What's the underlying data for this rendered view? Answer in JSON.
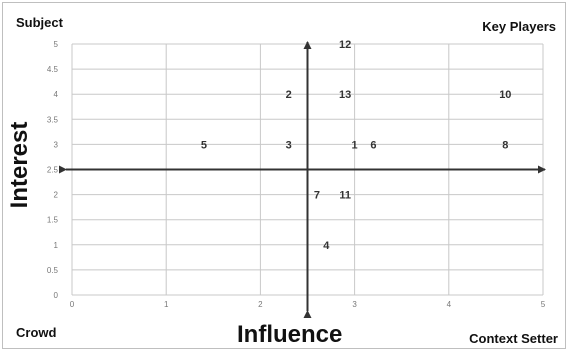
{
  "quadrants": {
    "top_left": "Subject",
    "top_right": "Key Players",
    "bottom_left": "Crowd",
    "bottom_right": "Context Setter"
  },
  "chart_data": {
    "type": "scatter",
    "xlabel": "Influence",
    "ylabel": "Interest",
    "xlim": [
      0,
      5
    ],
    "ylim": [
      0,
      5
    ],
    "x_ticks": [
      "0",
      "1",
      "2",
      "3",
      "4",
      "5"
    ],
    "y_ticks": [
      "0",
      "0.5",
      "1",
      "1.5",
      "2",
      "2.5",
      "3",
      "3.5",
      "4",
      "4.5",
      "5"
    ],
    "crosshair": {
      "x": 2.5,
      "y": 2.5
    },
    "grid": true,
    "points": [
      {
        "label": "12",
        "x": 2.9,
        "y": 5
      },
      {
        "label": "2",
        "x": 2.3,
        "y": 4
      },
      {
        "label": "13",
        "x": 2.9,
        "y": 4
      },
      {
        "label": "10",
        "x": 4.6,
        "y": 4
      },
      {
        "label": "5",
        "x": 1.4,
        "y": 3
      },
      {
        "label": "3",
        "x": 2.3,
        "y": 3
      },
      {
        "label": "1",
        "x": 3.0,
        "y": 3
      },
      {
        "label": "6",
        "x": 3.2,
        "y": 3
      },
      {
        "label": "8",
        "x": 4.6,
        "y": 3
      },
      {
        "label": "7",
        "x": 2.6,
        "y": 2
      },
      {
        "label": "11",
        "x": 2.9,
        "y": 2
      },
      {
        "label": "4",
        "x": 2.7,
        "y": 1
      }
    ],
    "colors": {
      "axis": "#333333",
      "grid": "#c8c8c8",
      "tick": "#777777",
      "point_label": "#333333"
    }
  }
}
